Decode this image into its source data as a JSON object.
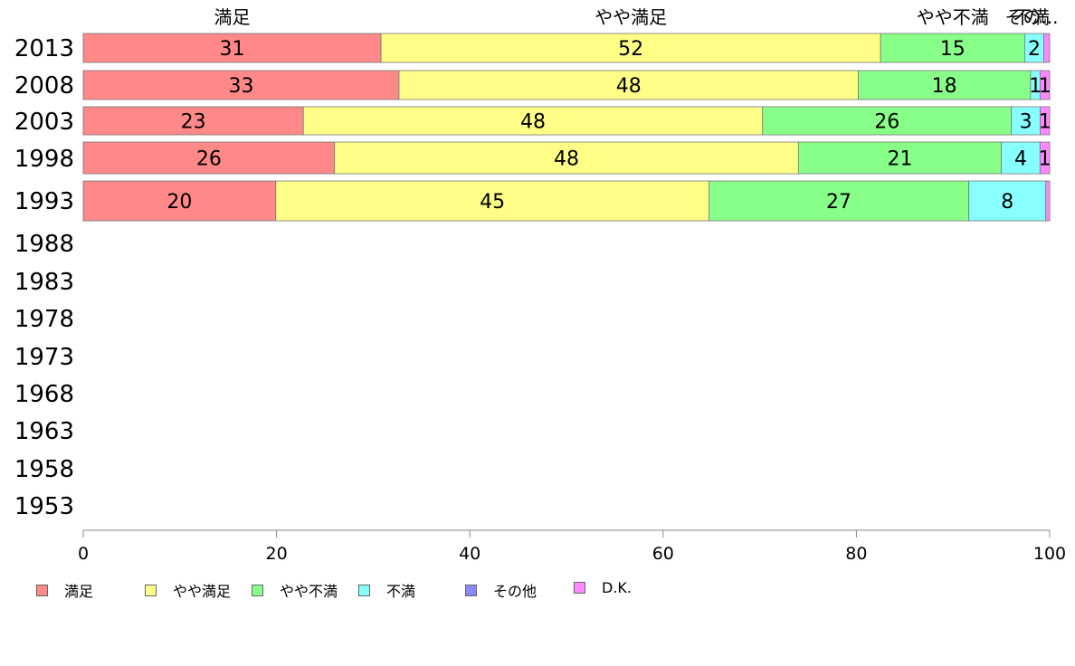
{
  "chart_data": {
    "type": "bar",
    "orientation": "horizontal",
    "stacked": true,
    "categories": [
      "2013",
      "2008",
      "2003",
      "1998",
      "1993",
      "1988",
      "1983",
      "1978",
      "1973",
      "1968",
      "1963",
      "1958",
      "1953"
    ],
    "series": [
      {
        "name": "満足",
        "color": "#ff8888",
        "values": [
          31,
          33,
          23,
          26,
          20,
          null,
          null,
          null,
          null,
          null,
          null,
          null,
          null
        ]
      },
      {
        "name": "やや満足",
        "color": "#ffff88",
        "values": [
          52,
          48,
          48,
          48,
          45,
          null,
          null,
          null,
          null,
          null,
          null,
          null,
          null
        ]
      },
      {
        "name": "やや不満",
        "color": "#88ff88",
        "values": [
          15,
          18,
          26,
          21,
          27,
          null,
          null,
          null,
          null,
          null,
          null,
          null,
          null
        ]
      },
      {
        "name": "不満",
        "color": "#88ffff",
        "values": [
          2,
          1,
          3,
          4,
          8,
          null,
          null,
          null,
          null,
          null,
          null,
          null,
          null
        ]
      },
      {
        "name": "その他",
        "color": "#8888ff",
        "values": [
          0,
          0,
          0,
          0,
          0,
          null,
          null,
          null,
          null,
          null,
          null,
          null,
          null
        ]
      },
      {
        "name": "D.K.",
        "color": "#ff88ff",
        "values": [
          0.6,
          1,
          1,
          1,
          0.4,
          null,
          null,
          null,
          null,
          null,
          null,
          null,
          null
        ]
      }
    ],
    "data_labels": [
      [
        "31",
        "52",
        "15",
        "2",
        "",
        ""
      ],
      [
        "33",
        "48",
        "18",
        "1",
        "",
        "1"
      ],
      [
        "23",
        "48",
        "26",
        "3",
        "",
        "1"
      ],
      [
        "26",
        "48",
        "21",
        "4",
        "",
        "1"
      ],
      [
        "20",
        "45",
        "27",
        "8",
        "",
        ""
      ]
    ],
    "top_labels": [
      "満足",
      "やや満足",
      "やや不満",
      "不満",
      "その..."
    ],
    "xlim": [
      0,
      100
    ],
    "xticks": [
      "0",
      "20",
      "40",
      "60",
      "80",
      "100"
    ],
    "legend_position": "bottom"
  }
}
